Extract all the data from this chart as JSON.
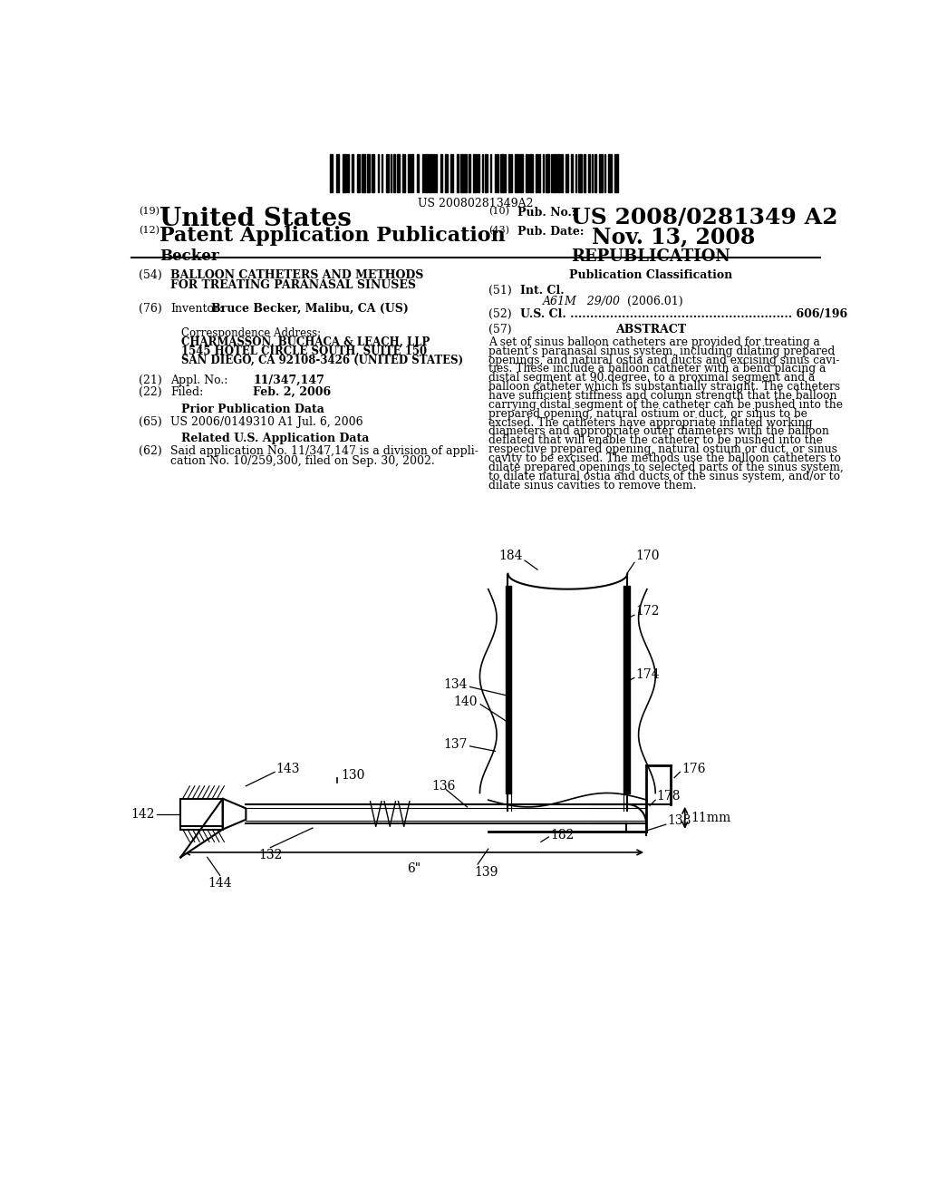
{
  "bg_color": "#ffffff",
  "text_color": "#000000",
  "patent_number_text": "US 20080281349A2",
  "left_col1_label": "(19)",
  "left_col1_text": "United States",
  "left_col2_label": "(12)",
  "left_col2_text": "Patent Application Publication",
  "left_col3_text": "Becker",
  "right_col1_label": "(10)",
  "right_col1_text": "Pub. No.:",
  "right_col1_value": "US 2008/0281349 A2",
  "right_col2_label": "(43)",
  "right_col2_text": "Pub. Date:",
  "right_col2_value": "Nov. 13, 2008",
  "right_col3_value": "REPUBLICATION",
  "section54_label": "(54)",
  "section54_line1": "BALLOON CATHETERS AND METHODS",
  "section54_line2": "FOR TREATING PARANASAL SINUSES",
  "section76_label": "(76)",
  "section76_text": "Inventor:",
  "section76_value": "Bruce Becker, Malibu, CA (US)",
  "correspondence_label": "Correspondence Address:",
  "correspondence_lines": [
    "CHARMASSON, BUCHACA & LEACH, LLP",
    "1545 HOTEL CIRCLE SOUTH, SUITE 150",
    "SAN DIEGO, CA 92108-3426 (UNITED STATES)"
  ],
  "section21_label": "(21)",
  "section21_text": "Appl. No.:",
  "section21_value": "11/347,147",
  "section22_label": "(22)",
  "section22_text": "Filed:",
  "section22_value": "Feb. 2, 2006",
  "prior_pub_label": "Prior Publication Data",
  "section65_label": "(65)",
  "section65_text": "US 2006/0149310 A1 Jul. 6, 2006",
  "related_app_label": "Related U.S. Application Data",
  "section62_label": "(62)",
  "section62_line1": "Said application No. 11/347,147 is a division of appli-",
  "section62_line2": "cation No. 10/259,300, filed on Sep. 30, 2002.",
  "pub_class_label": "Publication Classification",
  "section51_label": "(51)",
  "section51_text": "Int. Cl.",
  "section51_subtext": "A61M   29/00",
  "section51_year": "(2006.01)",
  "section52_label": "(52)",
  "section52_text": "U.S. Cl. ........................................................ 606/196",
  "section57_label": "(57)",
  "section57_text": "ABSTRACT",
  "abstract_lines": [
    "A set of sinus balloon catheters are provided for treating a",
    "patient’s paranasal sinus system, including dilating prepared",
    "openings, and natural ostia and ducts and excising sinus cavi-",
    "ties. These include a balloon catheter with a bend placing a",
    "distal segment at 90.degree. to a proximal segment and a",
    "balloon catheter which is substantially straight. The catheters",
    "have sufficient stiffness and column strength that the balloon",
    "carrying distal segment of the catheter can be pushed into the",
    "prepared opening, natural ostium or duct, or sinus to be",
    "excised. The catheters have appropriate inflated working",
    "diameters and appropriate outer diameters with the balloon",
    "deflated that will enable the catheter to be pushed into the",
    "respective prepared opening, natural ostium or duct, or sinus",
    "cavity to be excised. The methods use the balloon catheters to",
    "dilate prepared openings to selected parts of the sinus system,",
    "to dilate natural ostia and ducts of the sinus system, and/or to",
    "dilate sinus cavities to remove them."
  ]
}
